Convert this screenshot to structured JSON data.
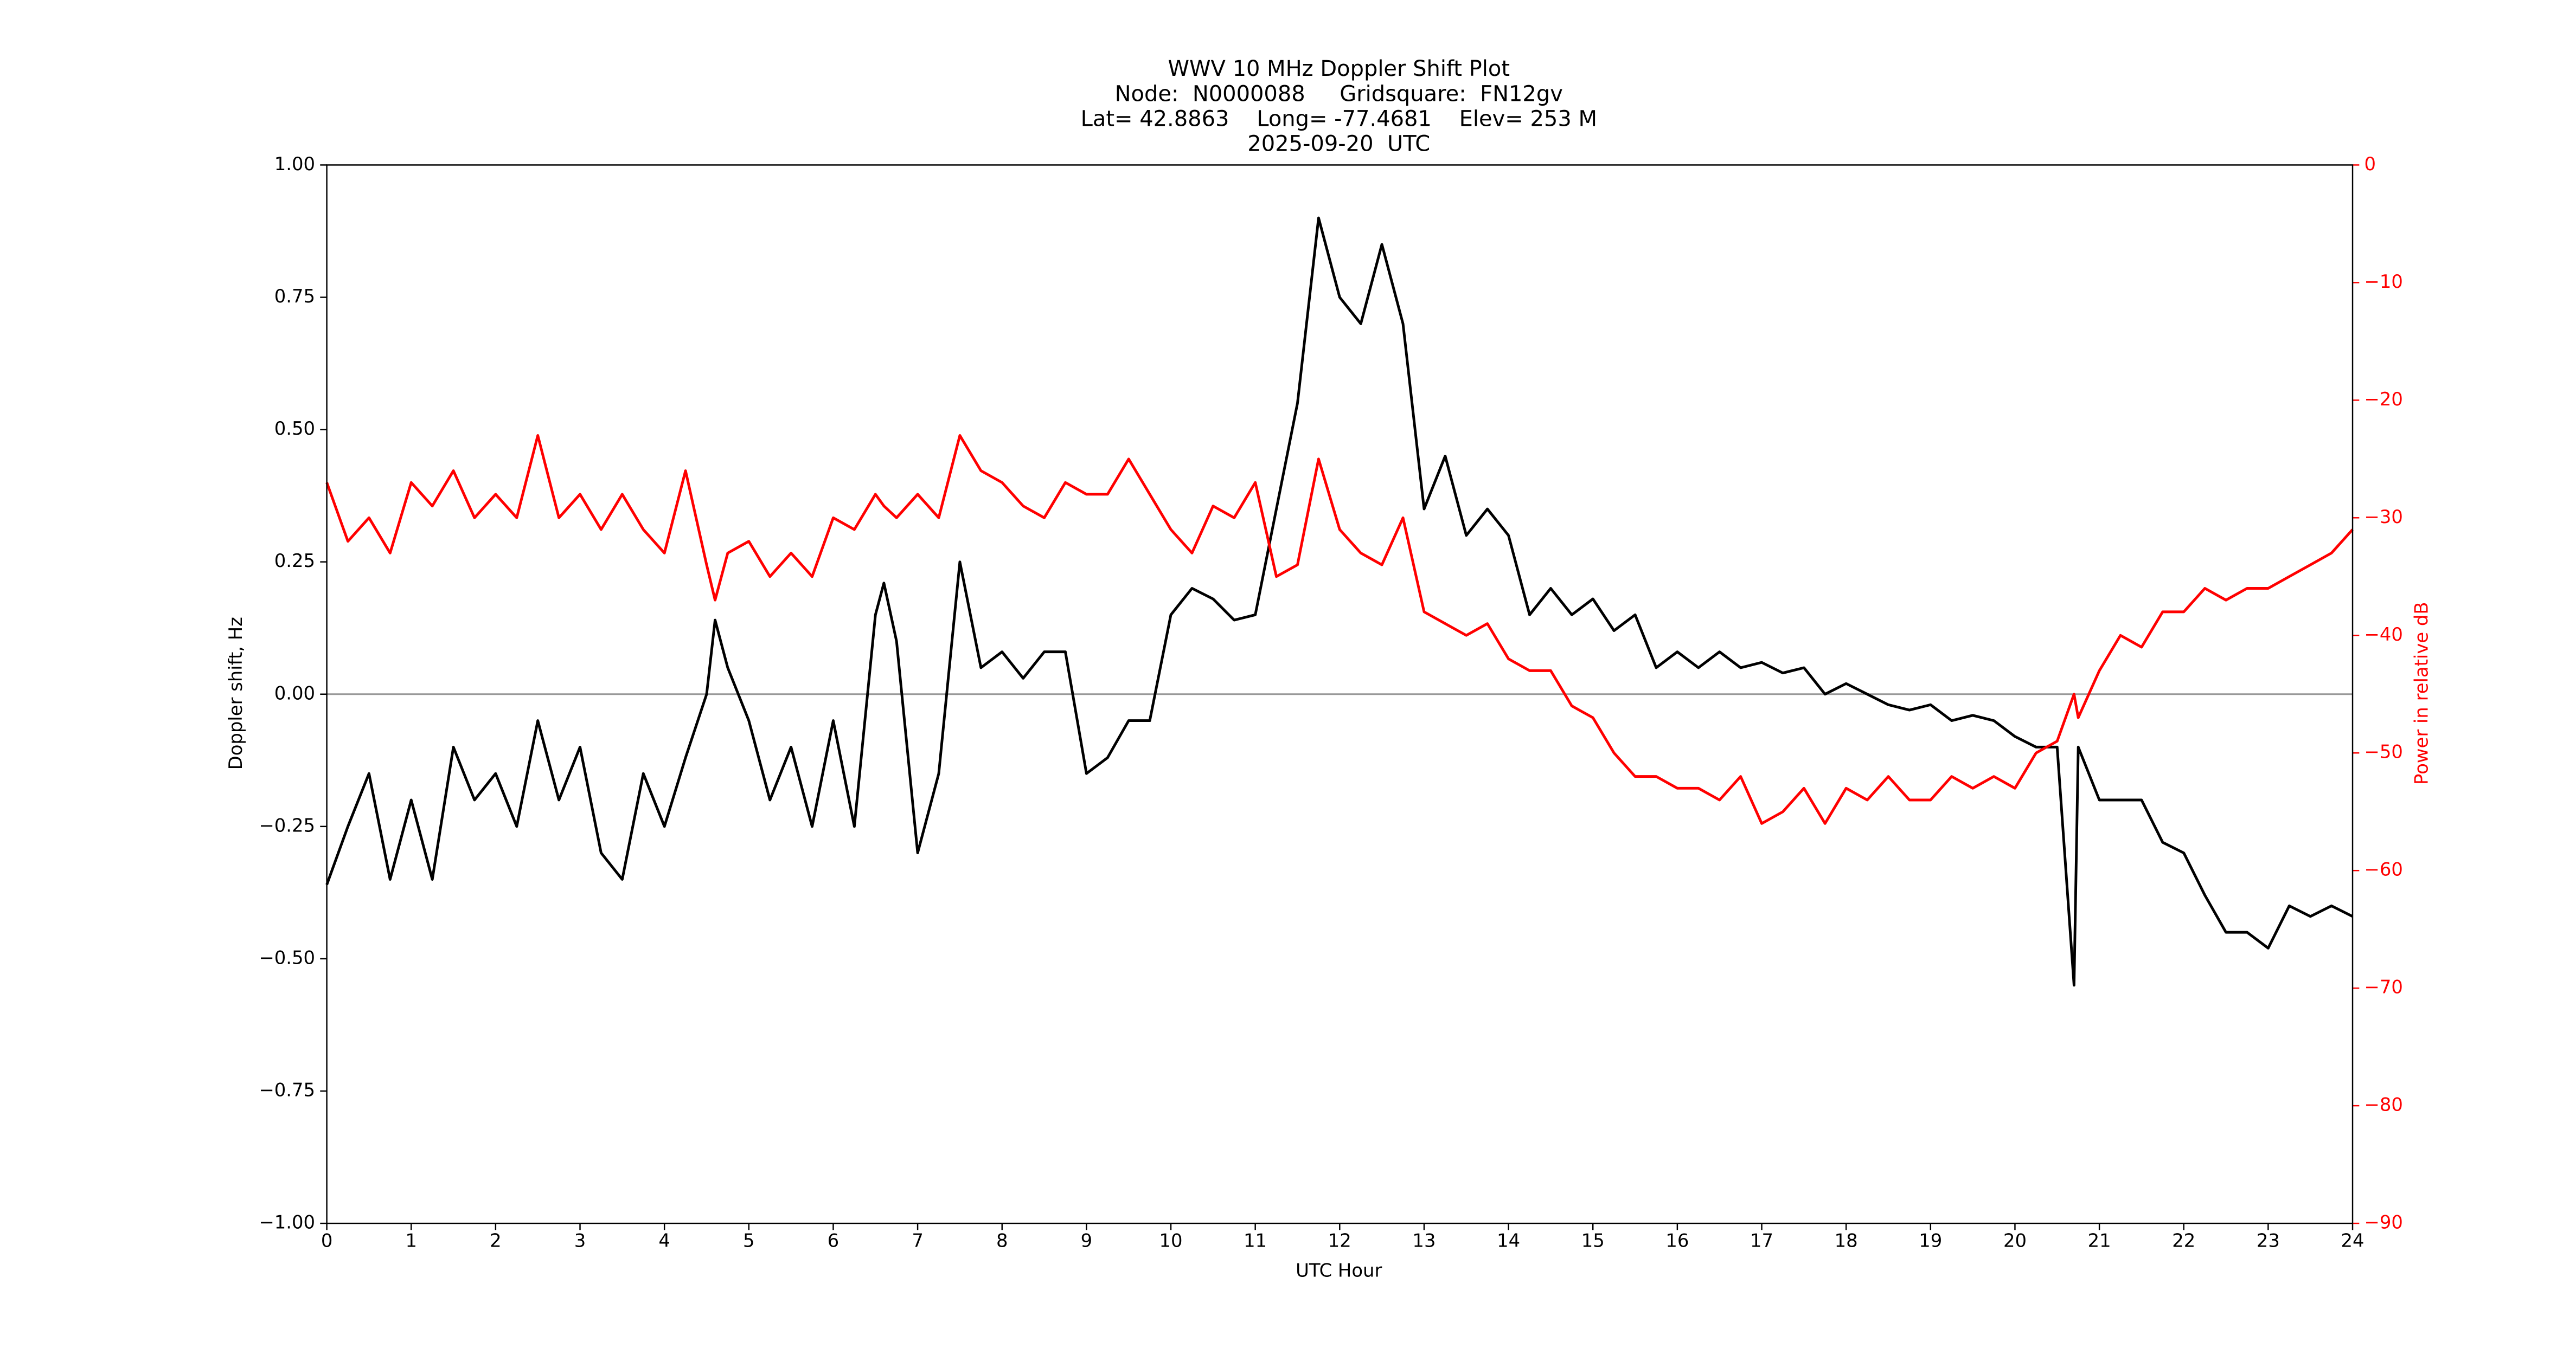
{
  "chart_data": {
    "type": "line",
    "title": "WWV 10 MHz Doppler Shift Plot",
    "subtitle": [
      "Node:  N0000088     Gridsquare:  FN12gv",
      "Lat= 42.8863    Long= -77.4681    Elev= 253 M",
      "2025-09-20  UTC"
    ],
    "xlabel": "UTC Hour",
    "ylabel": "Doppler shift, Hz",
    "y2label": "Power in relative dB",
    "y2color": "#ff0000",
    "reference_line": 0,
    "reference_color": "#999999",
    "x": [
      0,
      0.25,
      0.5,
      0.75,
      1,
      1.25,
      1.5,
      1.75,
      2,
      2.25,
      2.5,
      2.75,
      3,
      3.25,
      3.5,
      3.75,
      4,
      4.25,
      4.5,
      4.6,
      4.75,
      5,
      5.25,
      5.5,
      5.75,
      6,
      6.25,
      6.5,
      6.6,
      6.75,
      7,
      7.25,
      7.5,
      7.75,
      8,
      8.25,
      8.5,
      8.75,
      9,
      9.25,
      9.5,
      9.75,
      10,
      10.25,
      10.5,
      10.75,
      11,
      11.25,
      11.5,
      11.75,
      12,
      12.25,
      12.5,
      12.75,
      13,
      13.25,
      13.5,
      13.75,
      14,
      14.25,
      14.5,
      14.75,
      15,
      15.25,
      15.5,
      15.75,
      16,
      16.25,
      16.5,
      16.75,
      17,
      17.25,
      17.5,
      17.75,
      18,
      18.25,
      18.5,
      18.75,
      19,
      19.25,
      19.5,
      19.75,
      20,
      20.25,
      20.5,
      20.7,
      20.75,
      21,
      21.25,
      21.5,
      21.75,
      22,
      22.25,
      22.5,
      22.75,
      23,
      23.25,
      23.5,
      23.75,
      24
    ],
    "series": [
      {
        "color": "#000000",
        "values": [
          -0.36,
          -0.25,
          -0.15,
          -0.35,
          -0.2,
          -0.35,
          -0.1,
          -0.2,
          -0.15,
          -0.25,
          -0.05,
          -0.2,
          -0.1,
          -0.3,
          -0.35,
          -0.15,
          -0.25,
          -0.12,
          0.0,
          0.14,
          0.05,
          -0.05,
          -0.2,
          -0.1,
          -0.25,
          -0.05,
          -0.25,
          0.15,
          0.21,
          0.1,
          -0.3,
          -0.15,
          0.25,
          0.05,
          0.08,
          0.03,
          0.08,
          0.08,
          -0.15,
          -0.12,
          -0.05,
          -0.05,
          0.15,
          0.2,
          0.18,
          0.14,
          0.15,
          0.35,
          0.55,
          0.9,
          0.75,
          0.7,
          0.85,
          0.7,
          0.35,
          0.45,
          0.3,
          0.35,
          0.3,
          0.15,
          0.2,
          0.15,
          0.18,
          0.12,
          0.15,
          0.05,
          0.08,
          0.05,
          0.08,
          0.05,
          0.06,
          0.04,
          0.05,
          0.0,
          0.02,
          0.0,
          -0.02,
          -0.03,
          -0.02,
          -0.05,
          -0.04,
          -0.05,
          -0.08,
          -0.1,
          -0.1,
          -0.55,
          -0.1,
          -0.2,
          -0.2,
          -0.2,
          -0.28,
          -0.3,
          -0.38,
          -0.45,
          -0.45,
          -0.48,
          -0.4,
          -0.42,
          -0.4,
          -0.42
        ]
      },
      {
        "color": "#ff0000",
        "axis": "y2",
        "values": [
          -27,
          -32,
          -30,
          -33,
          -27,
          -29,
          -26,
          -30,
          -28,
          -30,
          -23,
          -30,
          -28,
          -31,
          -28,
          -31,
          -33,
          -26,
          -34,
          -37,
          -33,
          -32,
          -35,
          -33,
          -35,
          -30,
          -31,
          -28,
          -29,
          -30,
          -28,
          -30,
          -23,
          -26,
          -27,
          -29,
          -30,
          -27,
          -28,
          -28,
          -25,
          -28,
          -31,
          -33,
          -29,
          -30,
          -27,
          -35,
          -34,
          -25,
          -31,
          -33,
          -34,
          -30,
          -38,
          -39,
          -40,
          -39,
          -42,
          -43,
          -43,
          -46,
          -47,
          -50,
          -52,
          -52,
          -53,
          -53,
          -54,
          -52,
          -56,
          -55,
          -53,
          -56,
          -53,
          -54,
          -52,
          -54,
          -54,
          -52,
          -53,
          -52,
          -53,
          -50,
          -49,
          -45,
          -47,
          -43,
          -40,
          -41,
          -38,
          -38,
          -36,
          -37,
          -36,
          -36,
          -35,
          -34,
          -33,
          -31
        ]
      }
    ],
    "xlim": [
      0,
      24
    ],
    "xticks": [
      0,
      1,
      2,
      3,
      4,
      5,
      6,
      7,
      8,
      9,
      10,
      11,
      12,
      13,
      14,
      15,
      16,
      17,
      18,
      19,
      20,
      21,
      22,
      23,
      24
    ],
    "ylim": [
      -1,
      1
    ],
    "yticks": [
      {
        "value": -1,
        "label": "−1.00"
      },
      {
        "value": -0.75,
        "label": "−0.75"
      },
      {
        "value": -0.5,
        "label": "−0.50"
      },
      {
        "value": -0.25,
        "label": "−0.25"
      },
      {
        "value": 0,
        "label": "0.00"
      },
      {
        "value": 0.25,
        "label": "0.25"
      },
      {
        "value": 0.5,
        "label": "0.50"
      },
      {
        "value": 0.75,
        "label": "0.75"
      },
      {
        "value": 1,
        "label": "1.00"
      }
    ],
    "y2lim": [
      -90,
      0
    ],
    "y2ticks": [
      {
        "value": -90,
        "label": "−90"
      },
      {
        "value": -80,
        "label": "−80"
      },
      {
        "value": -70,
        "label": "−70"
      },
      {
        "value": -60,
        "label": "−60"
      },
      {
        "value": -50,
        "label": "−50"
      },
      {
        "value": -40,
        "label": "−40"
      },
      {
        "value": -30,
        "label": "−30"
      },
      {
        "value": -20,
        "label": "−20"
      },
      {
        "value": -10,
        "label": "−10"
      },
      0
    ]
  }
}
